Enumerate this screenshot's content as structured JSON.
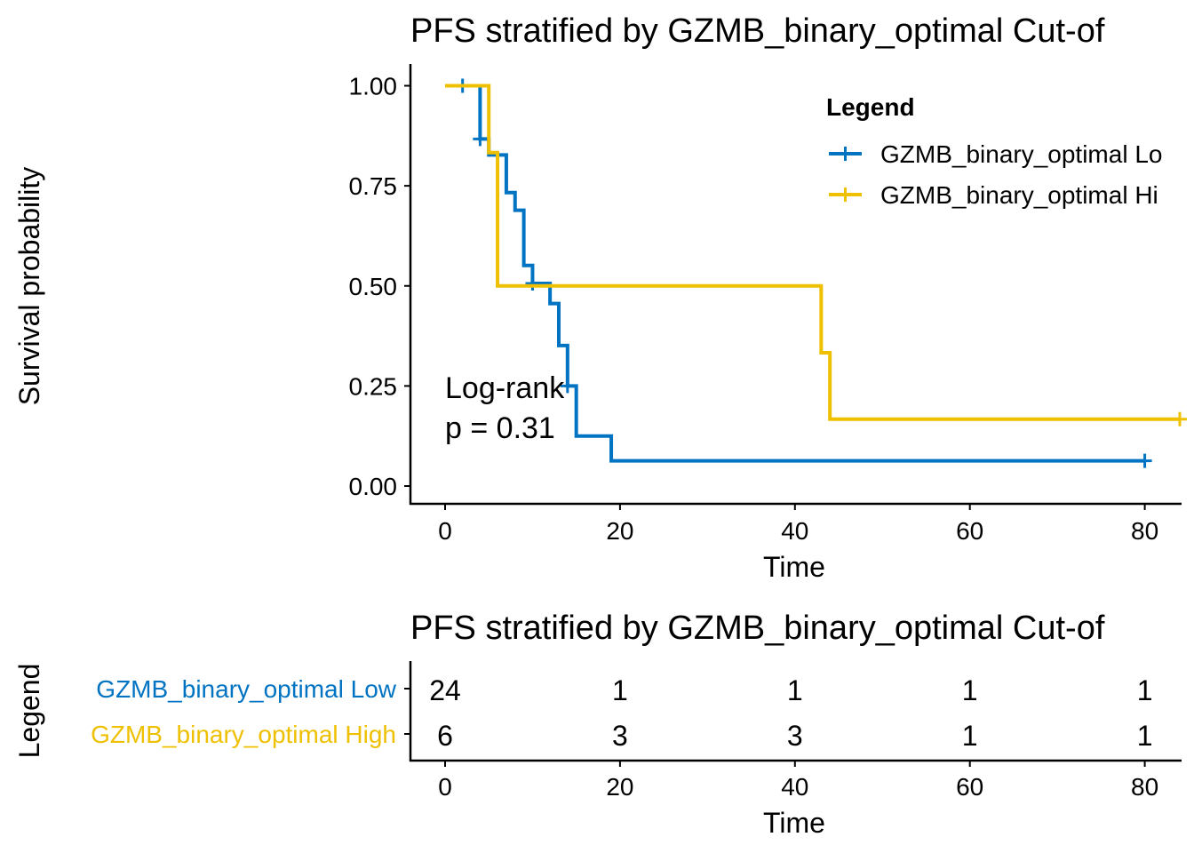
{
  "chart_data": [
    {
      "type": "line",
      "subtype": "kaplan-meier",
      "title": "PFS stratified by GZMB_binary_optimal Cut-of",
      "xlabel": "Time",
      "ylabel": "Survival probability",
      "xlim": [
        0,
        80
      ],
      "ylim": [
        0,
        1
      ],
      "xticks": [
        "0",
        "20",
        "40",
        "60",
        "80"
      ],
      "yticks": [
        "0.00",
        "0.25",
        "0.50",
        "0.75",
        "1.00"
      ],
      "grid": false,
      "legend": {
        "title": "Legend",
        "placement": "top-right"
      },
      "annotation": [
        "Log-rank",
        "p = 0.31"
      ],
      "series": [
        {
          "name": "GZMB_binary_optimal Lo",
          "color": "#0073C2",
          "steps": [
            [
              0,
              1.0
            ],
            [
              4,
              0.867
            ],
            [
              5,
              0.827
            ],
            [
              6,
              0.827
            ],
            [
              7,
              0.733
            ],
            [
              8,
              0.689
            ],
            [
              9,
              0.551
            ],
            [
              10,
              0.506
            ],
            [
              12,
              0.456
            ],
            [
              13,
              0.351
            ],
            [
              14,
              0.25
            ],
            [
              15,
              0.125
            ],
            [
              19,
              0.063
            ],
            [
              80,
              0.063
            ]
          ],
          "censor_marks": [
            [
              2,
              1.0
            ],
            [
              4,
              0.867
            ],
            [
              10,
              0.506
            ],
            [
              14,
              0.25
            ],
            [
              80,
              0.063
            ]
          ]
        },
        {
          "name": "GZMB_binary_optimal Hi",
          "color": "#EFC000",
          "steps": [
            [
              0,
              1.0
            ],
            [
              5,
              0.833
            ],
            [
              6,
              0.5
            ],
            [
              43,
              0.333
            ],
            [
              44,
              0.167
            ],
            [
              84,
              0.167
            ]
          ],
          "censor_marks": [
            [
              84,
              0.167
            ]
          ]
        }
      ]
    },
    {
      "type": "table",
      "title": "PFS stratified by GZMB_binary_optimal Cut-of",
      "xlabel": "Time",
      "ylabel": "Legend",
      "xticks": [
        "0",
        "20",
        "40",
        "60",
        "80"
      ],
      "x": [
        0,
        20,
        40,
        60,
        80
      ],
      "rows": [
        {
          "label": "GZMB_binary_optimal Low",
          "color": "#0073C2",
          "values": [
            "24",
            "1",
            "1",
            "1",
            "1"
          ]
        },
        {
          "label": "GZMB_binary_optimal High",
          "color": "#EFC000",
          "values": [
            "6",
            "3",
            "3",
            "1",
            "1"
          ]
        }
      ]
    }
  ]
}
